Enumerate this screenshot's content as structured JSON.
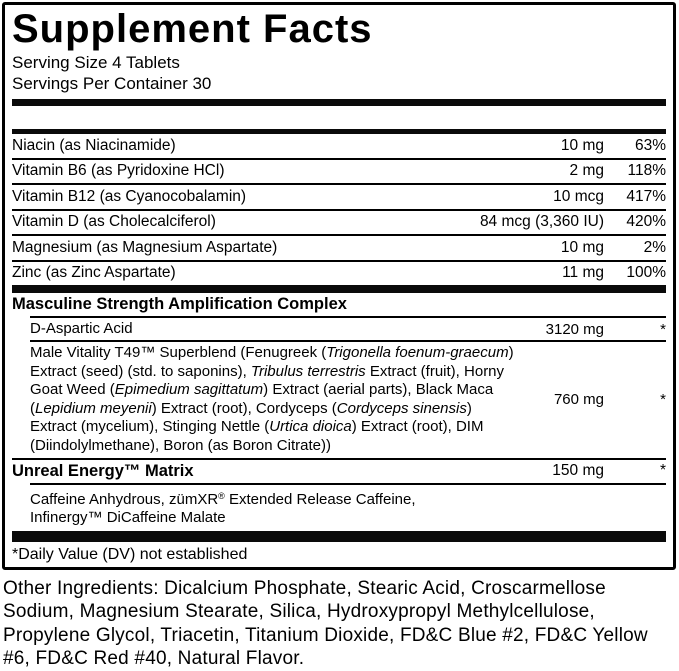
{
  "label": {
    "title": "Supplement Facts",
    "serving_size": "Serving Size 4 Tablets",
    "servings_per_container": "Servings Per Container 30",
    "nutrients": [
      {
        "name": "Niacin (as Niacinamide)",
        "amount": "10 mg",
        "dv": "63%"
      },
      {
        "name": "Vitamin B6 (as Pyridoxine HCl)",
        "amount": "2 mg",
        "dv": "118%"
      },
      {
        "name": "Vitamin B12 (as Cyanocobalamin)",
        "amount": "10 mcg",
        "dv": "417%"
      },
      {
        "name": "Vitamin D (as Cholecalciferol)",
        "amount": "84 mcg (3,360 IU)",
        "dv": "420%"
      },
      {
        "name": "Magnesium (as Magnesium Aspartate)",
        "amount": "10 mg",
        "dv": "2%"
      },
      {
        "name": "Zinc (as Zinc Aspartate)",
        "amount": "11 mg",
        "dv": "100%"
      }
    ],
    "sections": [
      {
        "header": {
          "segments": [
            {
              "text": "Masculine Strength Amplification Complex"
            }
          ],
          "amount": "",
          "dv": ""
        },
        "items": [
          {
            "single_line": true,
            "segments": [
              {
                "text": "D-Aspartic Acid"
              }
            ],
            "amount": "3120 mg",
            "dv": "*"
          },
          {
            "segments": [
              {
                "text": "Male Vitality T49™ Superblend (Fenugreek ("
              },
              {
                "text": "Trigonella foenum-graecum",
                "italic": true
              },
              {
                "text": ") Extract (seed) (std. to saponins), "
              },
              {
                "text": "Tribulus terrestris",
                "italic": true
              },
              {
                "text": " Extract (fruit), Horny Goat Weed ("
              },
              {
                "text": "Epimedium sagittatum",
                "italic": true
              },
              {
                "text": ") Extract (aerial parts), Black Maca ("
              },
              {
                "text": "Lepidium meyenii",
                "italic": true
              },
              {
                "text": ") Extract (root), Cordyceps ("
              },
              {
                "text": "Cordyceps sinensis",
                "italic": true
              },
              {
                "text": ") Extract (mycelium), Stinging Nettle ("
              },
              {
                "text": "Urtica dioica",
                "italic": true
              },
              {
                "text": ") Extract (root), DIM (Diindolylmethane), Boron (as Boron Citrate))"
              }
            ],
            "amount": "760 mg",
            "dv": "*"
          }
        ]
      },
      {
        "header": {
          "segments": [
            {
              "text": "Unreal Energy™ Matrix"
            }
          ],
          "amount": "150 mg",
          "dv": "*"
        },
        "items": [
          {
            "segments": [
              {
                "text": "Caffeine Anhydrous, zümXR"
              },
              {
                "text": "®",
                "sup": true
              },
              {
                "text": " Extended Release Caffeine,"
              },
              {
                "br": true
              },
              {
                "text": "Infinergy™ DiCaffeine Malate"
              }
            ],
            "amount": "",
            "dv": ""
          }
        ]
      }
    ],
    "footnote": "*Daily Value (DV) not established"
  },
  "other_ingredients": "Other Ingredients: Dicalcium Phosphate, Stearic Acid, Croscarmellose Sodium, Magnesium Stearate, Silica, Hydroxypropyl Methylcellulose, Propylene Glycol, Triacetin, Titanium Dioxide, FD&C Blue #2, FD&C Yellow #6, FD&C Red #40, Natural Flavor.",
  "colors": {
    "ink": "#000000",
    "background": "#ffffff"
  }
}
